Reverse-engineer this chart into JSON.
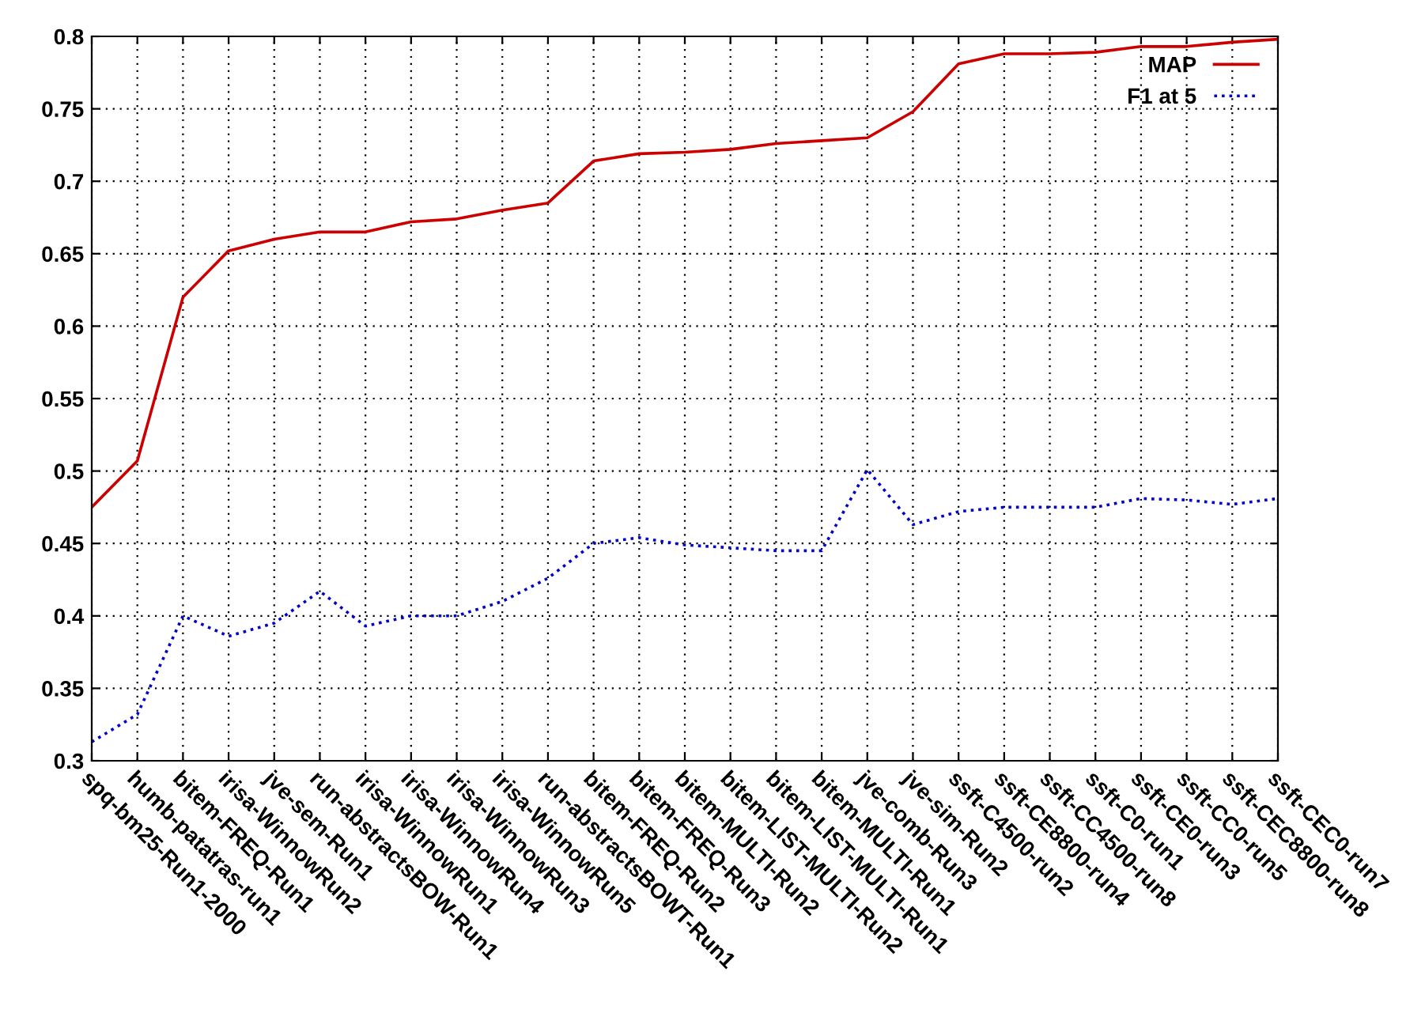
{
  "chart_data": {
    "type": "line",
    "categories": [
      "spq-bm25-Run1-2000",
      "humb-patatras-run1",
      "bitem-FREQ-Run1",
      "irisa-WinnowRun2",
      "jve-sem-Run1",
      "run-abstractsBOW-Run1",
      "irisa-WinnowRun1",
      "irisa-WinnowRun4",
      "irisa-WinnowRun3",
      "irisa-WinnowRun5",
      "run-abstractsBOWT-Run1",
      "bitem-FREQ-Run2",
      "bitem-FREQ-Run3",
      "bitem-MULTI-Run2",
      "bitem-LIST-MULTI-Run2",
      "bitem-LIST-MULTI-Run1",
      "bitem-MULTI-Run1",
      "jve-comb-Run3",
      "jve-sim-Run2",
      "ssft-C4500-run2",
      "ssft-CE8800-run4",
      "ssft-CC4500-run8",
      "ssft-C0-run1",
      "ssft-CE0-run3",
      "ssft-CC0-run5",
      "ssft-CEC8800-run8",
      "ssft-CEC0-run7"
    ],
    "series": [
      {
        "name": "MAP",
        "color": "#cc0000",
        "line_style": "solid",
        "values": [
          0.475,
          0.507,
          0.62,
          0.652,
          0.66,
          0.665,
          0.665,
          0.672,
          0.674,
          0.68,
          0.685,
          0.714,
          0.719,
          0.72,
          0.722,
          0.726,
          0.728,
          0.73,
          0.748,
          0.781,
          0.788,
          0.788,
          0.789,
          0.793,
          0.793,
          0.796,
          0.798
        ]
      },
      {
        "name": "F1 at 5",
        "color": "#0000cc",
        "line_style": "dotted",
        "values": [
          0.313,
          0.332,
          0.4,
          0.386,
          0.395,
          0.417,
          0.393,
          0.4,
          0.4,
          0.41,
          0.426,
          0.45,
          0.454,
          0.449,
          0.447,
          0.445,
          0.445,
          0.501,
          0.463,
          0.472,
          0.475,
          0.475,
          0.475,
          0.481,
          0.48,
          0.477,
          0.481
        ]
      }
    ],
    "ylim": [
      0.3,
      0.8
    ],
    "yticks": [
      0.3,
      0.35,
      0.4,
      0.45,
      0.5,
      0.55,
      0.6,
      0.65,
      0.7,
      0.75,
      0.8
    ],
    "grid": true,
    "legend": "top right",
    "marker": "none"
  }
}
